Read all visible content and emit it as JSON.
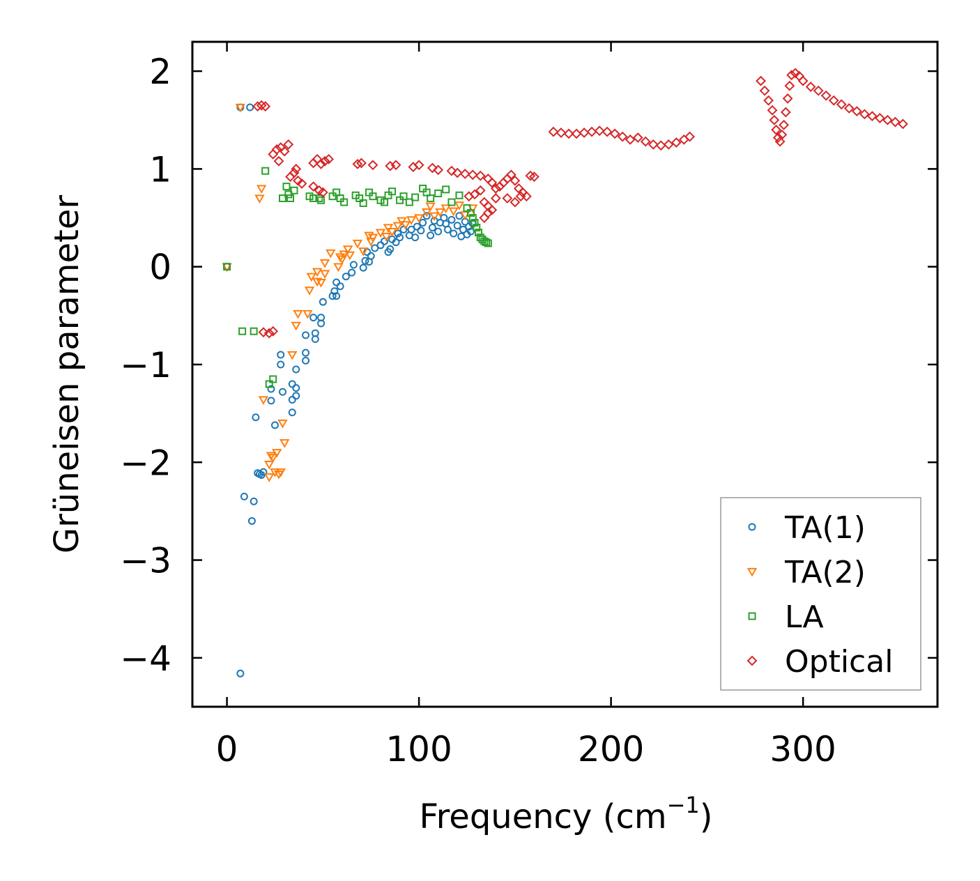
{
  "chart_data": {
    "type": "scatter",
    "xlabel": "Frequency (cm",
    "xlabel_sup": "−1",
    "xlabel_close": ")",
    "ylabel": "Grüneisen parameter",
    "xlim": [
      -18,
      370
    ],
    "ylim": [
      -4.5,
      2.3
    ],
    "xticks": [
      0,
      100,
      200,
      300
    ],
    "xtick_labels": [
      "0",
      "100",
      "200",
      "300"
    ],
    "yticks": [
      2,
      1,
      0,
      -1,
      -2,
      -3,
      -4
    ],
    "ytick_labels": [
      "2",
      "1",
      "0",
      "−1",
      "−2",
      "−3",
      "−4"
    ],
    "legend_position": "lower-right",
    "series": [
      {
        "name": "TA(1)",
        "marker": "circle",
        "color": "#1f77b4",
        "points": [
          [
            0,
            0
          ],
          [
            7,
            1.63
          ],
          [
            12,
            1.63
          ],
          [
            7,
            -4.16
          ],
          [
            9,
            -2.35
          ],
          [
            13,
            -2.6
          ],
          [
            14,
            -2.4
          ],
          [
            16,
            -2.11
          ],
          [
            17,
            -2.12
          ],
          [
            18,
            -2.13
          ],
          [
            19,
            -2.1
          ],
          [
            15,
            -1.54
          ],
          [
            23,
            -1.25
          ],
          [
            23,
            -1.37
          ],
          [
            25,
            -1.62
          ],
          [
            28,
            -0.9
          ],
          [
            28,
            -1.0
          ],
          [
            29,
            -1.28
          ],
          [
            34,
            -1.2
          ],
          [
            34,
            -1.36
          ],
          [
            34,
            -1.49
          ],
          [
            36,
            -1.24
          ],
          [
            36,
            -1.32
          ],
          [
            36,
            -1.05
          ],
          [
            41,
            -0.7
          ],
          [
            41,
            -0.88
          ],
          [
            41,
            -0.96
          ],
          [
            45,
            -0.52
          ],
          [
            46,
            -0.68
          ],
          [
            46,
            -0.74
          ],
          [
            49,
            -0.52
          ],
          [
            49,
            -0.58
          ],
          [
            50,
            -0.36
          ],
          [
            55,
            -0.3
          ],
          [
            56,
            -0.25
          ],
          [
            57,
            -0.16
          ],
          [
            57,
            -0.3
          ],
          [
            59,
            -0.2
          ],
          [
            62,
            -0.1
          ],
          [
            65,
            -0.06
          ],
          [
            66,
            0.02
          ],
          [
            71,
            -0.01
          ],
          [
            72,
            0.06
          ],
          [
            73,
            0.15
          ],
          [
            74,
            0.05
          ],
          [
            75,
            0.11
          ],
          [
            77,
            0.19
          ],
          [
            80,
            0.22
          ],
          [
            82,
            0.26
          ],
          [
            84,
            0.15
          ],
          [
            85,
            0.18
          ],
          [
            86,
            0.28
          ],
          [
            88,
            0.25
          ],
          [
            89,
            0.34
          ],
          [
            90,
            0.3
          ],
          [
            92,
            0.38
          ],
          [
            95,
            0.32
          ],
          [
            96,
            0.38
          ],
          [
            98,
            0.3
          ],
          [
            99,
            0.41
          ],
          [
            101,
            0.37
          ],
          [
            102,
            0.45
          ],
          [
            104,
            0.52
          ],
          [
            106,
            0.32
          ],
          [
            107,
            0.4
          ],
          [
            108,
            0.47
          ],
          [
            110,
            0.36
          ],
          [
            111,
            0.45
          ],
          [
            113,
            0.5
          ],
          [
            114,
            0.44
          ],
          [
            115,
            0.38
          ],
          [
            117,
            0.48
          ],
          [
            118,
            0.34
          ],
          [
            120,
            0.42
          ],
          [
            121,
            0.52
          ],
          [
            122,
            0.31
          ],
          [
            123,
            0.38
          ],
          [
            124,
            0.46
          ],
          [
            125,
            0.33
          ],
          [
            126,
            0.41
          ],
          [
            127,
            0.36
          ],
          [
            128,
            0.44
          ]
        ]
      },
      {
        "name": "TA(2)",
        "marker": "triangle-down",
        "color": "#ff7f0e",
        "points": [
          [
            0,
            0
          ],
          [
            7,
            1.63
          ],
          [
            17,
            0.7
          ],
          [
            18,
            0.8
          ],
          [
            19,
            -1.36
          ],
          [
            22,
            -2.15
          ],
          [
            22,
            -2.02
          ],
          [
            23,
            -1.93
          ],
          [
            24,
            -1.95
          ],
          [
            25,
            -2.1
          ],
          [
            26,
            -1.9
          ],
          [
            27,
            -2.12
          ],
          [
            28,
            -2.1
          ],
          [
            29,
            -1.6
          ],
          [
            30,
            -1.8
          ],
          [
            34,
            -0.9
          ],
          [
            36,
            -0.6
          ],
          [
            37,
            -0.48
          ],
          [
            42,
            -0.48
          ],
          [
            43,
            -0.24
          ],
          [
            44,
            -0.1
          ],
          [
            47,
            -0.05
          ],
          [
            47,
            -0.15
          ],
          [
            49,
            -0.16
          ],
          [
            51,
            0.04
          ],
          [
            51,
            -0.07
          ],
          [
            54,
            0.14
          ],
          [
            58,
            0.0
          ],
          [
            59,
            0.1
          ],
          [
            60,
            0.08
          ],
          [
            61,
            0.13
          ],
          [
            63,
            0.18
          ],
          [
            64,
            0.12
          ],
          [
            68,
            0.24
          ],
          [
            71,
            0.16
          ],
          [
            74,
            0.32
          ],
          [
            75,
            0.26
          ],
          [
            76,
            0.3
          ],
          [
            80,
            0.35
          ],
          [
            83,
            0.31
          ],
          [
            84,
            0.4
          ],
          [
            86,
            0.36
          ],
          [
            89,
            0.42
          ],
          [
            91,
            0.47
          ],
          [
            93,
            0.43
          ],
          [
            96,
            0.48
          ],
          [
            100,
            0.5
          ],
          [
            104,
            0.56
          ],
          [
            106,
            0.62
          ],
          [
            108,
            0.52
          ],
          [
            111,
            0.56
          ],
          [
            114,
            0.6
          ],
          [
            118,
            0.57
          ],
          [
            121,
            0.63
          ],
          [
            124,
            0.53
          ],
          [
            128,
            0.6
          ]
        ]
      },
      {
        "name": "LA",
        "marker": "square",
        "color": "#2ca02c",
        "points": [
          [
            0,
            0
          ],
          [
            8,
            -0.66
          ],
          [
            14,
            -0.66
          ],
          [
            20,
            0.98
          ],
          [
            22,
            -1.2
          ],
          [
            24,
            -1.15
          ],
          [
            29,
            0.7
          ],
          [
            31,
            0.82
          ],
          [
            32,
            0.74
          ],
          [
            33,
            0.7
          ],
          [
            35,
            0.78
          ],
          [
            43,
            0.72
          ],
          [
            45,
            0.7
          ],
          [
            48,
            0.7
          ],
          [
            49,
            0.68
          ],
          [
            55,
            0.72
          ],
          [
            57,
            0.76
          ],
          [
            59,
            0.7
          ],
          [
            61,
            0.66
          ],
          [
            67,
            0.73
          ],
          [
            69,
            0.7
          ],
          [
            71,
            0.65
          ],
          [
            74,
            0.76
          ],
          [
            76,
            0.72
          ],
          [
            80,
            0.68
          ],
          [
            82,
            0.66
          ],
          [
            84,
            0.73
          ],
          [
            86,
            0.77
          ],
          [
            90,
            0.68
          ],
          [
            92,
            0.72
          ],
          [
            95,
            0.66
          ],
          [
            98,
            0.71
          ],
          [
            102,
            0.8
          ],
          [
            104,
            0.76
          ],
          [
            106,
            0.7
          ],
          [
            110,
            0.75
          ],
          [
            114,
            0.79
          ],
          [
            117,
            0.66
          ],
          [
            121,
            0.73
          ],
          [
            125,
            0.6
          ],
          [
            127,
            0.55
          ],
          [
            128,
            0.5
          ],
          [
            129,
            0.45
          ],
          [
            130,
            0.4
          ],
          [
            131,
            0.35
          ],
          [
            132,
            0.3
          ],
          [
            133,
            0.28
          ],
          [
            134,
            0.26
          ],
          [
            135,
            0.25
          ],
          [
            136,
            0.24
          ]
        ]
      },
      {
        "name": "Optical",
        "marker": "diamond",
        "color": "#d62728",
        "points": [
          [
            16,
            1.64
          ],
          [
            18,
            1.65
          ],
          [
            20,
            1.64
          ],
          [
            19,
            -0.67
          ],
          [
            22,
            -0.68
          ],
          [
            24,
            -0.66
          ],
          [
            24,
            1.15
          ],
          [
            26,
            1.2
          ],
          [
            27,
            1.08
          ],
          [
            28,
            1.22
          ],
          [
            30,
            1.18
          ],
          [
            32,
            1.25
          ],
          [
            33,
            0.92
          ],
          [
            35,
            0.96
          ],
          [
            36,
            1.0
          ],
          [
            37,
            0.88
          ],
          [
            39,
            0.85
          ],
          [
            45,
            1.06
          ],
          [
            47,
            1.1
          ],
          [
            49,
            1.05
          ],
          [
            51,
            1.08
          ],
          [
            53,
            1.1
          ],
          [
            45,
            0.82
          ],
          [
            48,
            0.78
          ],
          [
            50,
            0.76
          ],
          [
            68,
            1.05
          ],
          [
            70,
            1.06
          ],
          [
            76,
            1.04
          ],
          [
            85,
            1.03
          ],
          [
            88,
            1.04
          ],
          [
            97,
            1.02
          ],
          [
            100,
            1.04
          ],
          [
            107,
            1.01
          ],
          [
            110,
            0.99
          ],
          [
            117,
            0.98
          ],
          [
            120,
            0.96
          ],
          [
            124,
            0.95
          ],
          [
            128,
            0.94
          ],
          [
            132,
            0.93
          ],
          [
            126,
            0.72
          ],
          [
            129,
            0.74
          ],
          [
            132,
            0.78
          ],
          [
            134,
            0.66
          ],
          [
            136,
            0.62
          ],
          [
            138,
            0.58
          ],
          [
            140,
            0.7
          ],
          [
            142,
            0.82
          ],
          [
            144,
            0.86
          ],
          [
            146,
            0.9
          ],
          [
            148,
            0.94
          ],
          [
            150,
            0.88
          ],
          [
            152,
            0.8
          ],
          [
            154,
            0.76
          ],
          [
            156,
            0.72
          ],
          [
            146,
            0.7
          ],
          [
            150,
            0.66
          ],
          [
            153,
            0.72
          ],
          [
            158,
            0.93
          ],
          [
            160,
            0.92
          ],
          [
            136,
            0.9
          ],
          [
            138,
            0.86
          ],
          [
            140,
            0.8
          ],
          [
            134,
            0.5
          ],
          [
            136,
            0.55
          ],
          [
            170,
            1.38
          ],
          [
            174,
            1.37
          ],
          [
            178,
            1.36
          ],
          [
            182,
            1.36
          ],
          [
            186,
            1.37
          ],
          [
            190,
            1.38
          ],
          [
            194,
            1.39
          ],
          [
            198,
            1.38
          ],
          [
            202,
            1.36
          ],
          [
            206,
            1.33
          ],
          [
            210,
            1.3
          ],
          [
            214,
            1.32
          ],
          [
            218,
            1.28
          ],
          [
            222,
            1.25
          ],
          [
            226,
            1.24
          ],
          [
            230,
            1.25
          ],
          [
            234,
            1.27
          ],
          [
            238,
            1.3
          ],
          [
            241,
            1.33
          ],
          [
            278,
            1.9
          ],
          [
            280,
            1.8
          ],
          [
            282,
            1.7
          ],
          [
            284,
            1.6
          ],
          [
            285,
            1.5
          ],
          [
            286,
            1.4
          ],
          [
            287,
            1.32
          ],
          [
            288,
            1.28
          ],
          [
            289,
            1.35
          ],
          [
            290,
            1.45
          ],
          [
            291,
            1.58
          ],
          [
            292,
            1.72
          ],
          [
            293,
            1.85
          ],
          [
            294,
            1.96
          ],
          [
            296,
            1.98
          ],
          [
            298,
            1.95
          ],
          [
            300,
            1.9
          ],
          [
            304,
            1.84
          ],
          [
            308,
            1.8
          ],
          [
            312,
            1.75
          ],
          [
            316,
            1.7
          ],
          [
            320,
            1.66
          ],
          [
            324,
            1.62
          ],
          [
            328,
            1.59
          ],
          [
            332,
            1.56
          ],
          [
            336,
            1.54
          ],
          [
            340,
            1.52
          ],
          [
            344,
            1.5
          ],
          [
            348,
            1.48
          ],
          [
            352,
            1.46
          ]
        ]
      }
    ]
  }
}
